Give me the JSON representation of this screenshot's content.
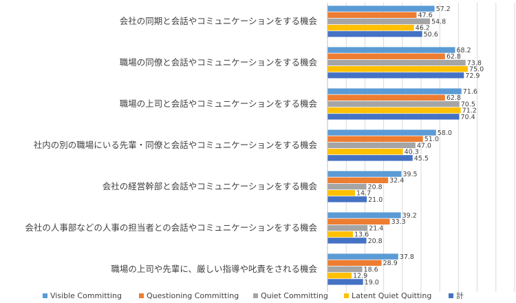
{
  "chart_data": {
    "type": "bar",
    "orientation": "horizontal",
    "title": "",
    "xlabel": "",
    "ylabel": "",
    "xlim": [
      0,
      100
    ],
    "grid": true,
    "legend_position": "bottom",
    "categories": [
      "会社の同期と会話やコミュニケーションをする機会",
      "職場の同僚と会話やコミュニケーションをする機会",
      "職場の上司と会話やコミュニケーションをする機会",
      "社内の別の職場にいる先輩・同僚と会話やコミュニケーションをする機会",
      "会社の経営幹部と会話やコミュニケーションをする機会",
      "会社の人事部などの人事の担当者との会話やコミュニケーションをする機会",
      "職場の上司や先輩に、厳しい指導や叱責をされる機会"
    ],
    "series": [
      {
        "name": "Visible Committing",
        "color": "#5b9bd5",
        "values": [
          57.2,
          68.2,
          71.6,
          58.0,
          39.5,
          39.2,
          37.8
        ]
      },
      {
        "name": "Questioning Committing",
        "color": "#ed7d31",
        "values": [
          47.6,
          62.8,
          62.8,
          51.0,
          32.4,
          33.3,
          28.9
        ]
      },
      {
        "name": "Quiet Committing",
        "color": "#a5a5a5",
        "values": [
          54.8,
          73.8,
          70.5,
          47.0,
          20.8,
          21.4,
          18.6
        ]
      },
      {
        "name": "Latent Quiet Quitting",
        "color": "#ffc000",
        "values": [
          46.2,
          75.0,
          71.2,
          40.3,
          14.7,
          13.6,
          12.9
        ]
      },
      {
        "name": "計",
        "color": "#4472c4",
        "values": [
          50.6,
          72.9,
          70.4,
          45.5,
          21.0,
          20.8,
          19.0
        ]
      }
    ]
  }
}
